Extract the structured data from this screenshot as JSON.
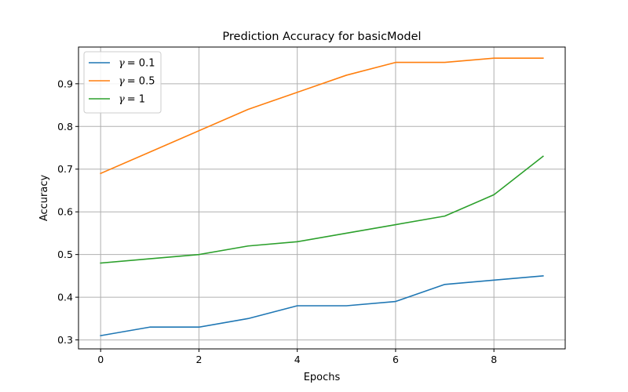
{
  "chart_data": {
    "type": "line",
    "title": "Prediction Accuracy for basicModel",
    "xlabel": "Epochs",
    "ylabel": "Accuracy",
    "x": [
      0,
      1,
      2,
      3,
      4,
      5,
      6,
      7,
      8,
      9
    ],
    "xlim": [
      -0.45,
      9.45
    ],
    "ylim": [
      0.279,
      0.986
    ],
    "xticks": [
      0,
      2,
      4,
      6,
      8
    ],
    "yticks": [
      0.3,
      0.4,
      0.5,
      0.6,
      0.7,
      0.8,
      0.9
    ],
    "xtick_labels": [
      "0",
      "2",
      "4",
      "6",
      "8"
    ],
    "ytick_labels": [
      "0.3",
      "0.4",
      "0.5",
      "0.6",
      "0.7",
      "0.8",
      "0.9"
    ],
    "grid": true,
    "legend_position": "top-left",
    "series": [
      {
        "name": "γ = 0.1",
        "symbol": "γ",
        "value_text": "= 0.1",
        "color": "#1f77b4",
        "values": [
          0.31,
          0.33,
          0.33,
          0.35,
          0.38,
          0.38,
          0.39,
          0.43,
          0.44,
          0.45
        ]
      },
      {
        "name": "γ = 0.5",
        "symbol": "γ",
        "value_text": "= 0.5",
        "color": "#ff7f0e",
        "values": [
          0.69,
          0.74,
          0.79,
          0.84,
          0.88,
          0.92,
          0.95,
          0.95,
          0.96,
          0.96
        ]
      },
      {
        "name": "γ = 1",
        "symbol": "γ",
        "value_text": "= 1",
        "color": "#2ca02c",
        "values": [
          0.48,
          0.49,
          0.5,
          0.52,
          0.53,
          0.55,
          0.57,
          0.59,
          0.64,
          0.73
        ]
      }
    ]
  }
}
